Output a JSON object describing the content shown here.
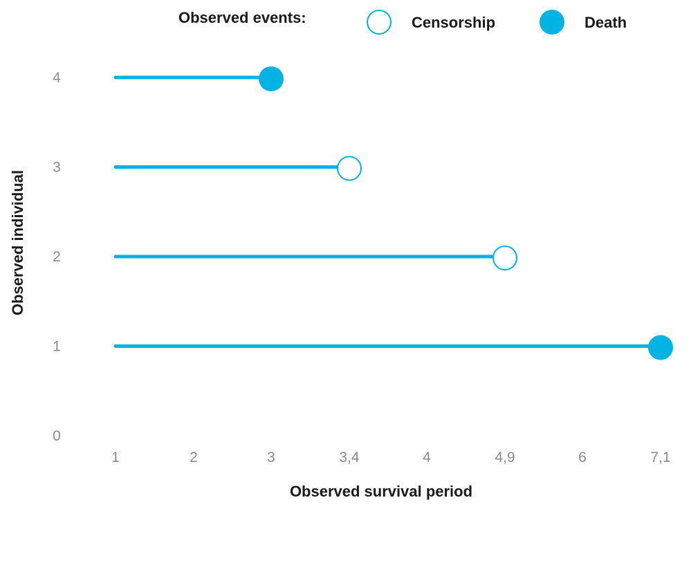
{
  "chart_data": {
    "type": "scatter",
    "title": "",
    "xlabel": "Observed survival period",
    "ylabel": "Observed individual",
    "accent_color": "#00b3e3",
    "legend": {
      "title": "Observed events:",
      "entries": [
        {
          "label": "Censorship",
          "marker": "open-circle"
        },
        {
          "label": "Death",
          "marker": "filled-circle"
        }
      ],
      "placement": "top"
    },
    "x_ticks": [
      "1",
      "2",
      "3",
      "3,4",
      "4",
      "4,9",
      "6",
      "7,1"
    ],
    "y_ticks": [
      "0",
      "1",
      "2",
      "3",
      "4"
    ],
    "grid": false,
    "individuals": [
      {
        "individual": 4,
        "start": 1,
        "end": 3,
        "event": "Death"
      },
      {
        "individual": 3,
        "start": 1,
        "end": 3.4,
        "event": "Censorship"
      },
      {
        "individual": 2,
        "start": 1,
        "end": 4.9,
        "event": "Censorship"
      },
      {
        "individual": 1,
        "start": 1,
        "end": 7.1,
        "event": "Death"
      }
    ]
  }
}
